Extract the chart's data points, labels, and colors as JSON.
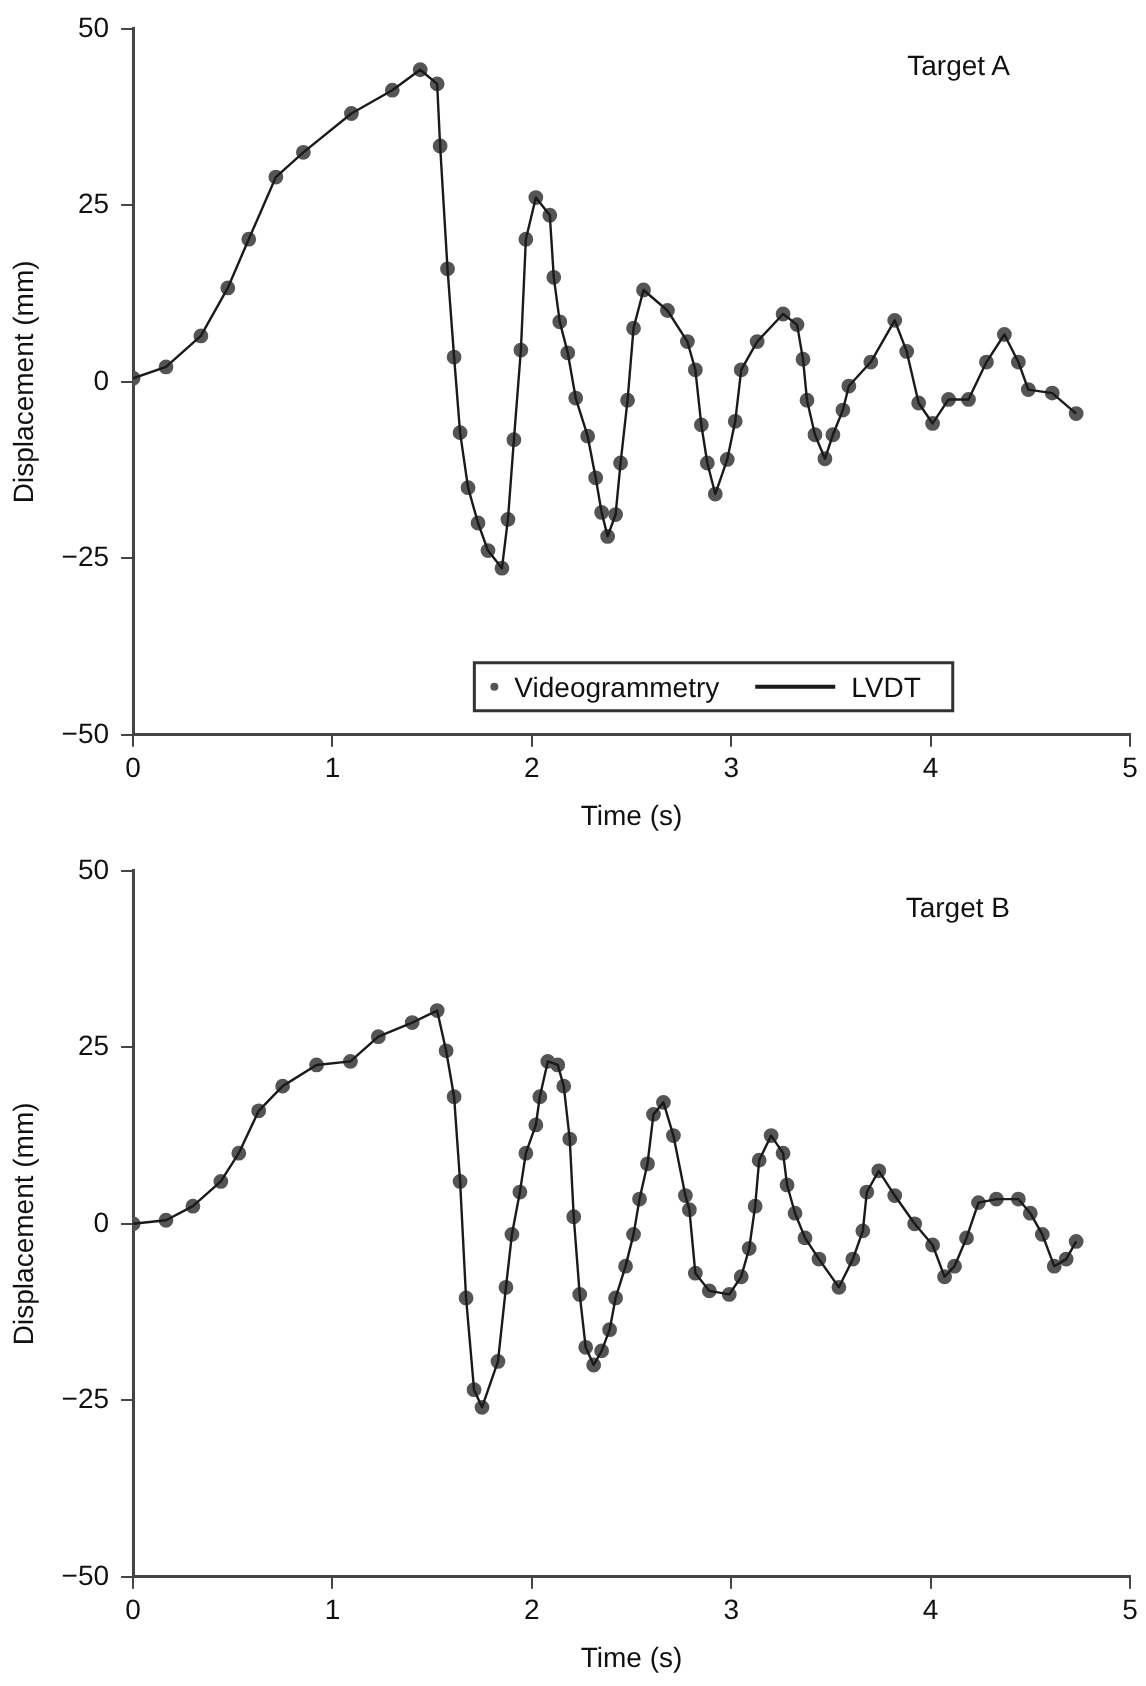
{
  "chart_data": [
    {
      "type": "line",
      "xlabel": "Time (s)",
      "ylabel": "Displacement (mm)",
      "annotations": [
        "Target A"
      ],
      "xlim": [
        0,
        5
      ],
      "xticks": [
        0,
        1,
        2,
        3,
        4,
        5
      ],
      "ylim": [
        -50,
        50
      ],
      "yticks": [
        -50,
        -25,
        0,
        25,
        50
      ],
      "grid": false,
      "legend": "bottom",
      "x": [
        0,
        0.165,
        0.34,
        0.475,
        0.58,
        0.716,
        0.854,
        1.095,
        1.3,
        1.44,
        1.525,
        1.54,
        1.577,
        1.61,
        1.64,
        1.68,
        1.73,
        1.78,
        1.85,
        1.88,
        1.91,
        1.945,
        1.97,
        2.02,
        2.09,
        2.11,
        2.14,
        2.18,
        2.22,
        2.28,
        2.32,
        2.35,
        2.38,
        2.42,
        2.445,
        2.48,
        2.51,
        2.56,
        2.68,
        2.78,
        2.82,
        2.85,
        2.88,
        2.92,
        2.98,
        3.02,
        3.05,
        3.13,
        3.26,
        3.33,
        3.36,
        3.38,
        3.42,
        3.47,
        3.51,
        3.56,
        3.59,
        3.7,
        3.82,
        3.88,
        3.94,
        4.01,
        4.09,
        4.19,
        4.28,
        4.37,
        4.44,
        4.49,
        4.61,
        4.73
      ],
      "series": [
        {
          "name": "Videogrammetry",
          "type": "scatter",
          "marker": "circle",
          "color": "#555555",
          "values": [
            0.5,
            2.1,
            6.5,
            13.3,
            20.2,
            29,
            32.5,
            38,
            41.3,
            44.2,
            42.2,
            33.4,
            16,
            3.5,
            -7.2,
            -15,
            -20,
            -23.9,
            -26.4,
            -19.5,
            -8.2,
            4.5,
            20.2,
            26.1,
            23.6,
            14.8,
            8.5,
            4.1,
            -2.3,
            -7.7,
            -13.6,
            -18.5,
            -21.9,
            -18.8,
            -11.5,
            -2.6,
            7.6,
            13,
            10.1,
            5.7,
            1.7,
            -6.1,
            -11.5,
            -15.9,
            -11,
            -5.6,
            1.7,
            5.7,
            9.6,
            8.1,
            3.2,
            -2.6,
            -7.5,
            -10.9,
            -7.5,
            -4,
            -0.6,
            2.8,
            8.7,
            4.3,
            -3,
            -5.9,
            -2.5,
            -2.5,
            2.8,
            6.7,
            2.8,
            -1.1,
            -1.6,
            -4.5
          ]
        },
        {
          "name": "LVDT",
          "type": "line",
          "marker": "none",
          "color": "#1a1a1a",
          "values": [
            0.5,
            2.1,
            6.5,
            13.3,
            20.2,
            29,
            32.5,
            38,
            41.3,
            44.2,
            42.2,
            33.4,
            16,
            3.5,
            -7.2,
            -15,
            -20,
            -23.9,
            -26.4,
            -19.5,
            -8.2,
            4.5,
            20.2,
            26.1,
            23.6,
            14.8,
            8.5,
            4.1,
            -2.3,
            -7.7,
            -13.6,
            -18.5,
            -21.9,
            -18.8,
            -11.5,
            -2.6,
            7.6,
            13,
            10.1,
            5.7,
            1.7,
            -6.1,
            -11.5,
            -15.9,
            -11,
            -5.6,
            1.7,
            5.7,
            9.6,
            8.1,
            3.2,
            -2.6,
            -7.5,
            -10.9,
            -7.5,
            -4,
            -0.6,
            2.8,
            8.7,
            4.3,
            -3,
            -5.9,
            -2.5,
            -2.5,
            2.8,
            6.7,
            2.8,
            -1.1,
            -1.6,
            -4.5
          ]
        }
      ]
    },
    {
      "type": "line",
      "xlabel": "Time (s)",
      "ylabel": "Displacement (mm)",
      "annotations": [
        "Target B"
      ],
      "xlim": [
        0,
        5
      ],
      "xticks": [
        0,
        1,
        2,
        3,
        4,
        5
      ],
      "ylim": [
        -50,
        50
      ],
      "yticks": [
        -50,
        -25,
        0,
        25,
        50
      ],
      "grid": false,
      "legend": false,
      "x": [
        0,
        0.165,
        0.3,
        0.44,
        0.53,
        0.63,
        0.75,
        0.92,
        1.09,
        1.23,
        1.4,
        1.525,
        1.57,
        1.61,
        1.64,
        1.67,
        1.71,
        1.75,
        1.83,
        1.87,
        1.9,
        1.94,
        1.97,
        2.02,
        2.04,
        2.08,
        2.13,
        2.16,
        2.19,
        2.21,
        2.24,
        2.27,
        2.31,
        2.35,
        2.39,
        2.42,
        2.47,
        2.51,
        2.54,
        2.58,
        2.61,
        2.66,
        2.71,
        2.77,
        2.79,
        2.82,
        2.89,
        2.99,
        3.05,
        3.09,
        3.12,
        3.14,
        3.2,
        3.26,
        3.28,
        3.32,
        3.37,
        3.44,
        3.54,
        3.61,
        3.66,
        3.68,
        3.74,
        3.82,
        3.92,
        4.01,
        4.07,
        4.12,
        4.18,
        4.24,
        4.33,
        4.44,
        4.5,
        4.56,
        4.62,
        4.68,
        4.73
      ],
      "series": [
        {
          "type": "scatter",
          "marker": "circle",
          "color": "#555555",
          "values": [
            0,
            0.5,
            2.5,
            6,
            10,
            16,
            19.5,
            22.5,
            23,
            26.5,
            28.5,
            30.2,
            24.5,
            18,
            6,
            -10.5,
            -23.5,
            -26,
            -19.5,
            -9,
            -1.5,
            4.5,
            10,
            14,
            18,
            23,
            22.5,
            19.5,
            12,
            1,
            -10,
            -17.5,
            -20,
            -18,
            -15,
            -10.5,
            -6,
            -1.5,
            3.5,
            8.5,
            15.5,
            17.2,
            12.5,
            4,
            2,
            -7,
            -9.5,
            -10,
            -7.5,
            -3.5,
            2.5,
            9,
            12.5,
            10,
            5.5,
            1.5,
            -2,
            -5,
            -9,
            -5,
            -1,
            4.5,
            7.5,
            4,
            0,
            -3,
            -7.5,
            -6,
            -2,
            3,
            3.5,
            3.5,
            1.5,
            -1.5,
            -6,
            -5,
            -2.5
          ]
        },
        {
          "type": "line",
          "marker": "none",
          "color": "#1a1a1a",
          "values": [
            0,
            0.5,
            2.5,
            6,
            10,
            16,
            19.5,
            22.5,
            23,
            26.5,
            28.5,
            30.2,
            24.5,
            18,
            6,
            -10.5,
            -23.5,
            -26,
            -19.5,
            -9,
            -1.5,
            4.5,
            10,
            14,
            18,
            23,
            22.5,
            19.5,
            12,
            1,
            -10,
            -17.5,
            -20,
            -18,
            -15,
            -10.5,
            -6,
            -1.5,
            3.5,
            8.5,
            15.5,
            17.2,
            12.5,
            4,
            2,
            -7,
            -9.5,
            -10,
            -7.5,
            -3.5,
            2.5,
            9,
            12.5,
            10,
            5.5,
            1.5,
            -2,
            -5,
            -9,
            -5,
            -1,
            4.5,
            7.5,
            4,
            0,
            -3,
            -7.5,
            -6,
            -2,
            3,
            3.5,
            3.5,
            1.5,
            -1.5,
            -6,
            -5,
            -2.5
          ]
        }
      ]
    }
  ]
}
